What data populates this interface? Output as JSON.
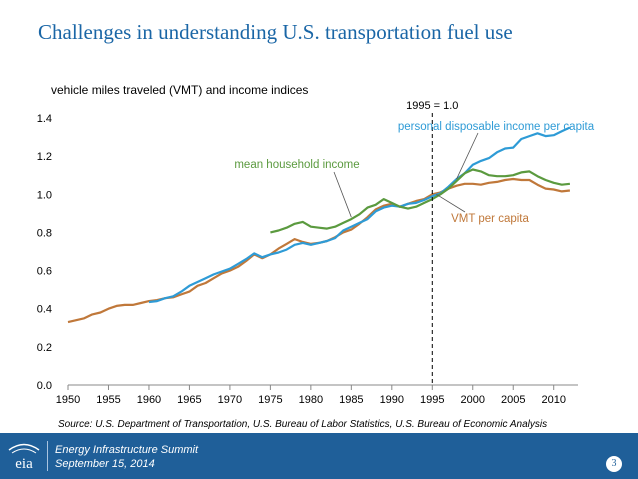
{
  "slide": {
    "title": "Challenges in understanding U.S. transportation fuel use",
    "source": "Source: U.S. Department of Transportation, U.S. Bureau of Labor Statistics, U.S. Bureau of Economic Analysis",
    "page_number": "3"
  },
  "footer": {
    "event": "Energy Infrastructure Summit",
    "date": "September 15, 2014",
    "logo_icon": "eia-logo-icon",
    "logo_text": "eia",
    "background_color": "#1f5f99"
  },
  "chart_data": {
    "type": "line",
    "title": "vehicle miles traveled (VMT) and income indices",
    "xlabel": "",
    "ylabel": "",
    "xlim": [
      1950,
      2013
    ],
    "ylim": [
      0,
      1.4
    ],
    "x_ticks": [
      "1950",
      "1955",
      "1960",
      "1965",
      "1970",
      "1975",
      "1980",
      "1985",
      "1990",
      "1995",
      "2000",
      "2005",
      "2010"
    ],
    "y_ticks": [
      "0.0",
      "0.2",
      "0.4",
      "0.6",
      "0.8",
      "1.0",
      "1.2",
      "1.4"
    ],
    "grid": false,
    "reference_line": {
      "x": 1995,
      "label": "1995 = 1.0",
      "style": "dashed"
    },
    "series": [
      {
        "name": "VMT per capita",
        "color": "#c0783a",
        "x": [
          1950,
          1951,
          1952,
          1953,
          1954,
          1955,
          1956,
          1957,
          1958,
          1959,
          1960,
          1961,
          1962,
          1963,
          1964,
          1965,
          1966,
          1967,
          1968,
          1969,
          1970,
          1971,
          1972,
          1973,
          1974,
          1975,
          1976,
          1977,
          1978,
          1979,
          1980,
          1981,
          1982,
          1983,
          1984,
          1985,
          1986,
          1987,
          1988,
          1989,
          1990,
          1991,
          1992,
          1993,
          1994,
          1995,
          1996,
          1997,
          1998,
          1999,
          2000,
          2001,
          2002,
          2003,
          2004,
          2005,
          2006,
          2007,
          2008,
          2009,
          2010,
          2011,
          2012
        ],
        "y": [
          0.33,
          0.34,
          0.35,
          0.37,
          0.38,
          0.4,
          0.415,
          0.42,
          0.42,
          0.43,
          0.44,
          0.445,
          0.455,
          0.46,
          0.475,
          0.49,
          0.52,
          0.535,
          0.56,
          0.585,
          0.6,
          0.62,
          0.65,
          0.685,
          0.665,
          0.685,
          0.715,
          0.74,
          0.765,
          0.75,
          0.74,
          0.745,
          0.755,
          0.775,
          0.8,
          0.815,
          0.845,
          0.88,
          0.92,
          0.94,
          0.95,
          0.935,
          0.95,
          0.965,
          0.975,
          1.0,
          1.01,
          1.03,
          1.045,
          1.055,
          1.055,
          1.05,
          1.06,
          1.065,
          1.075,
          1.08,
          1.075,
          1.075,
          1.05,
          1.03,
          1.025,
          1.015,
          1.02
        ]
      },
      {
        "name": "personal disposable income per capita",
        "color": "#2e9bd6",
        "x": [
          1960,
          1961,
          1962,
          1963,
          1964,
          1965,
          1966,
          1967,
          1968,
          1969,
          1970,
          1971,
          1972,
          1973,
          1974,
          1975,
          1976,
          1977,
          1978,
          1979,
          1980,
          1981,
          1982,
          1983,
          1984,
          1985,
          1986,
          1987,
          1988,
          1989,
          1990,
          1991,
          1992,
          1993,
          1994,
          1995,
          1996,
          1997,
          1998,
          1999,
          2000,
          2001,
          2002,
          2003,
          2004,
          2005,
          2006,
          2007,
          2008,
          2009,
          2010,
          2011,
          2012
        ],
        "y": [
          0.435,
          0.44,
          0.455,
          0.465,
          0.49,
          0.52,
          0.54,
          0.56,
          0.58,
          0.595,
          0.61,
          0.635,
          0.66,
          0.69,
          0.67,
          0.685,
          0.695,
          0.71,
          0.735,
          0.745,
          0.735,
          0.745,
          0.755,
          0.77,
          0.81,
          0.83,
          0.85,
          0.87,
          0.91,
          0.93,
          0.94,
          0.935,
          0.95,
          0.955,
          0.97,
          0.99,
          1.005,
          1.04,
          1.08,
          1.11,
          1.155,
          1.175,
          1.19,
          1.22,
          1.24,
          1.245,
          1.29,
          1.305,
          1.32,
          1.305,
          1.31,
          1.33,
          1.35
        ]
      },
      {
        "name": "mean household income",
        "color": "#5b9a3f",
        "x": [
          1975,
          1976,
          1977,
          1978,
          1979,
          1980,
          1981,
          1982,
          1983,
          1984,
          1985,
          1986,
          1987,
          1988,
          1989,
          1990,
          1991,
          1992,
          1993,
          1994,
          1995,
          1996,
          1997,
          1998,
          1999,
          2000,
          2001,
          2002,
          2003,
          2004,
          2005,
          2006,
          2007,
          2008,
          2009,
          2010,
          2011,
          2012
        ],
        "y": [
          0.8,
          0.81,
          0.825,
          0.845,
          0.855,
          0.83,
          0.825,
          0.82,
          0.83,
          0.85,
          0.87,
          0.895,
          0.93,
          0.945,
          0.975,
          0.955,
          0.935,
          0.925,
          0.935,
          0.955,
          0.975,
          1.0,
          1.03,
          1.07,
          1.11,
          1.13,
          1.12,
          1.1,
          1.095,
          1.095,
          1.1,
          1.115,
          1.12,
          1.095,
          1.075,
          1.06,
          1.05,
          1.055
        ]
      }
    ],
    "annotations": [
      {
        "text": "personal disposable income per capita",
        "series": "personal disposable income per capita",
        "color": "#2e9bd6"
      },
      {
        "text": "mean household income",
        "series": "mean household income",
        "color": "#5b9a3f"
      },
      {
        "text": "VMT per capita",
        "series": "VMT per capita",
        "color": "#c0783a"
      }
    ]
  }
}
